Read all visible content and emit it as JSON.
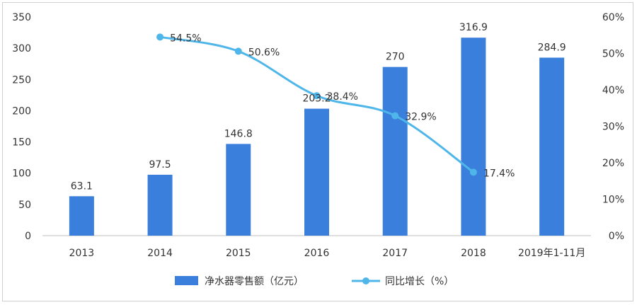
{
  "chart_data": {
    "type": "bar",
    "categories": [
      "2013",
      "2014",
      "2015",
      "2016",
      "2017",
      "2018",
      "2019年1-11月"
    ],
    "series": [
      {
        "name": "净水器零售额（亿元）",
        "kind": "bar",
        "axis": "left",
        "color": "#3a7fdc",
        "values": [
          63.1,
          97.5,
          146.8,
          203.2,
          270,
          316.9,
          284.9
        ],
        "labels": [
          "63.1",
          "97.5",
          "146.8",
          "203.2",
          "270",
          "316.9",
          "284.9"
        ]
      },
      {
        "name": "同比增长（%）",
        "kind": "line",
        "axis": "right",
        "color": "#4fb6ea",
        "values": [
          null,
          54.5,
          50.6,
          38.4,
          32.9,
          17.4,
          null
        ],
        "labels": [
          "",
          "54.5%",
          "50.6%",
          "38.4%",
          "32.9%",
          "17.4%",
          ""
        ]
      }
    ],
    "y_left": {
      "ylim": [
        0,
        350
      ],
      "ticks": [
        "0",
        "50",
        "100",
        "150",
        "200",
        "250",
        "300",
        "350"
      ]
    },
    "y_right": {
      "ylim": [
        0,
        60
      ],
      "ticks": [
        "0%",
        "10%",
        "20%",
        "30%",
        "40%",
        "50%",
        "60%"
      ]
    },
    "grid": false,
    "legend": "bottom"
  }
}
